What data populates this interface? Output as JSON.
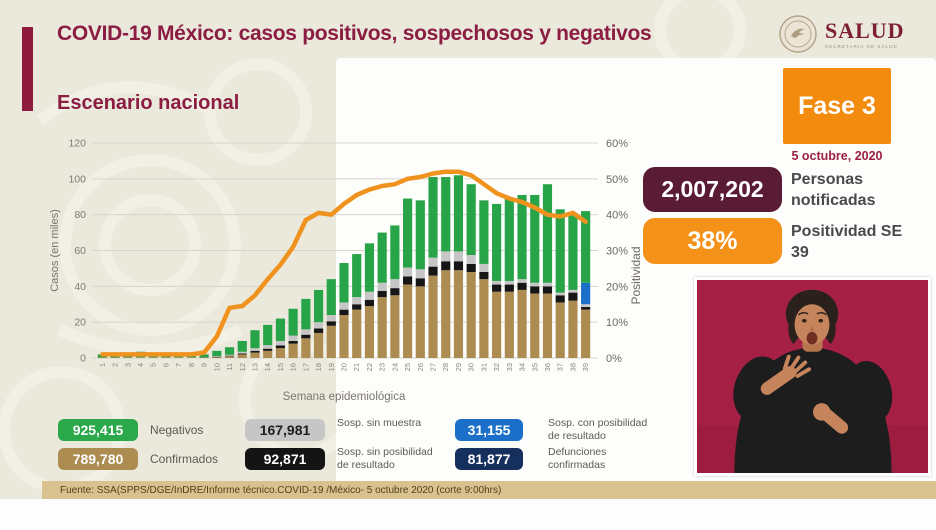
{
  "header": {
    "title": "COVID-19 México: casos positivos, sospechosos y negativos",
    "logo_name": "SALUD",
    "logo_sub": "SECRETARÍA DE SALUD"
  },
  "section_title": "Escenario nacional",
  "chart_data": {
    "type": "bar",
    "subtype": "stacked-bar-with-line",
    "xlabel": "Semana epidemiológica",
    "ylabel_left": "Casos (en miles)",
    "ylabel_right": "Positividad",
    "ylim_left": [
      0,
      120
    ],
    "ylim_right": [
      0,
      60
    ],
    "left_ticks": [
      0,
      20,
      40,
      60,
      80,
      100,
      120
    ],
    "right_ticks": [
      "0%",
      "10%",
      "20%",
      "30%",
      "40%",
      "50%",
      "60%"
    ],
    "grid": true,
    "categories": [
      1,
      2,
      3,
      4,
      5,
      6,
      7,
      8,
      9,
      10,
      11,
      12,
      13,
      14,
      15,
      16,
      17,
      18,
      19,
      20,
      21,
      22,
      23,
      24,
      25,
      26,
      27,
      28,
      29,
      30,
      31,
      32,
      33,
      34,
      35,
      36,
      37,
      38,
      39
    ],
    "series": [
      {
        "name": "Confirmados",
        "color": "#ad8c52",
        "values": [
          0.3,
          0.3,
          0.4,
          0.4,
          0.4,
          0.4,
          0.4,
          0.4,
          0.3,
          0.5,
          1,
          2,
          3,
          4,
          5.5,
          8,
          11,
          14,
          18,
          24,
          27,
          29,
          34,
          35,
          41,
          40,
          46,
          49,
          49,
          48,
          44,
          37,
          37,
          38,
          36,
          36,
          31,
          32,
          27
        ]
      },
      {
        "name": "Sosp. sin posibilidad de resultado",
        "color": "#161616",
        "values": [
          0,
          0,
          0,
          0,
          0,
          0,
          0,
          0,
          0,
          0.2,
          0.3,
          0.5,
          1,
          1.2,
          1.5,
          1.5,
          2,
          2.5,
          2.5,
          3,
          3,
          3.5,
          3.5,
          4,
          4.5,
          4.5,
          5,
          5,
          5,
          4.5,
          4,
          4,
          4,
          4,
          4,
          4,
          4,
          4.5,
          1.5
        ]
      },
      {
        "name": "Sosp. sin muestra",
        "color": "#c6c6c6",
        "values": [
          0,
          0,
          0,
          0,
          0,
          0,
          0,
          0,
          0,
          0.3,
          0.5,
          1,
          1.5,
          2,
          2.5,
          3,
          3,
          3.5,
          3.5,
          4,
          4,
          4.5,
          4.5,
          5,
          5,
          5,
          5,
          5.5,
          5.5,
          5,
          4.5,
          2,
          2,
          2,
          2,
          2,
          1.5,
          1.5,
          1.5
        ]
      },
      {
        "name": "Sosp. con posibilidad de resultado",
        "color": "#1b6fc9",
        "values": [
          0,
          0,
          0,
          0,
          0,
          0,
          0,
          0,
          0,
          0,
          0,
          0,
          0,
          0,
          0,
          0,
          0,
          0,
          0,
          0,
          0,
          0,
          0,
          0,
          0,
          0,
          0,
          0,
          0,
          0,
          0,
          0,
          0,
          0,
          0,
          0,
          0,
          0,
          12
        ]
      },
      {
        "name": "Negativos",
        "color": "#27a348",
        "values": [
          1.7,
          2.2,
          2.6,
          3.1,
          2.6,
          2.6,
          2.6,
          2.6,
          1.7,
          3,
          4.2,
          6,
          10,
          11.3,
          12.5,
          15,
          17,
          18,
          20,
          22,
          24,
          27,
          28,
          30,
          38.5,
          38.5,
          45,
          41.5,
          42.5,
          39.5,
          35.5,
          43,
          46,
          47,
          49,
          55,
          46.5,
          43,
          40
        ]
      }
    ],
    "line": {
      "name": "Positividad",
      "color": "#f0931e",
      "values": [
        1,
        1,
        1,
        1,
        1,
        1,
        1,
        1,
        1.5,
        6,
        14,
        14.5,
        17.5,
        22,
        26,
        31,
        38.5,
        40.5,
        40,
        43,
        45.5,
        47,
        48,
        48.5,
        50,
        50.5,
        51.5,
        52,
        52,
        51,
        48.5,
        46,
        44.5,
        43.5,
        42,
        40,
        39.5,
        40.5,
        38
      ]
    }
  },
  "legend": {
    "items": [
      {
        "value": "925,415",
        "label": "Negativos",
        "color": "#2aa84a",
        "text_color": "#ffffff",
        "row": 0,
        "col": 0
      },
      {
        "value": "167,981",
        "label": "Sosp. sin muestra",
        "color": "#c6c6c6",
        "text_color": "#1d1d1d",
        "row": 0,
        "col": 1
      },
      {
        "value": "31,155",
        "label": "Sosp. con posibilidad de resultado",
        "color": "#1b6fc9",
        "text_color": "#ffffff",
        "row": 0,
        "col": 2
      },
      {
        "value": "789,780",
        "label": "Confirmados",
        "color": "#ad8c52",
        "text_color": "#ffffff",
        "row": 1,
        "col": 0
      },
      {
        "value": "92,871",
        "label": "Sosp. sin posibilidad de resultado",
        "color": "#141414",
        "text_color": "#ffffff",
        "row": 1,
        "col": 1
      },
      {
        "value": "81,877",
        "label": "Defunciones confirmadas",
        "color": "#16305e",
        "text_color": "#ffffff",
        "row": 1,
        "col": 2
      }
    ]
  },
  "panel": {
    "fase_label": "Fase 3",
    "date": "5 octubre, 2020",
    "notified_value": "2,007,202",
    "notified_label": "Personas notificadas",
    "positivity_value": "38%",
    "positivity_label": "Positividad SE 39"
  },
  "footer": {
    "source": "Fuente: SSA(SPPS/DGE/InDRE/Informe técnico.COVID-19 /México- 5 octubre 2020 (corte 9:00hrs)"
  },
  "icons": {
    "logo_emblem": "eagle-seal-icon",
    "video": "sign-language-interpreter-video"
  },
  "colors": {
    "maroon_title": "#8b1c42",
    "accent_bar": "#8e1a3d",
    "orange": "#f28b0e",
    "dark_maroon_badge": "#5a1b34",
    "cream_background": "#ebe8dc",
    "footer_tan": "#d9c28f",
    "video_crimson": "#a62045",
    "line_orange": "#f0931e"
  }
}
